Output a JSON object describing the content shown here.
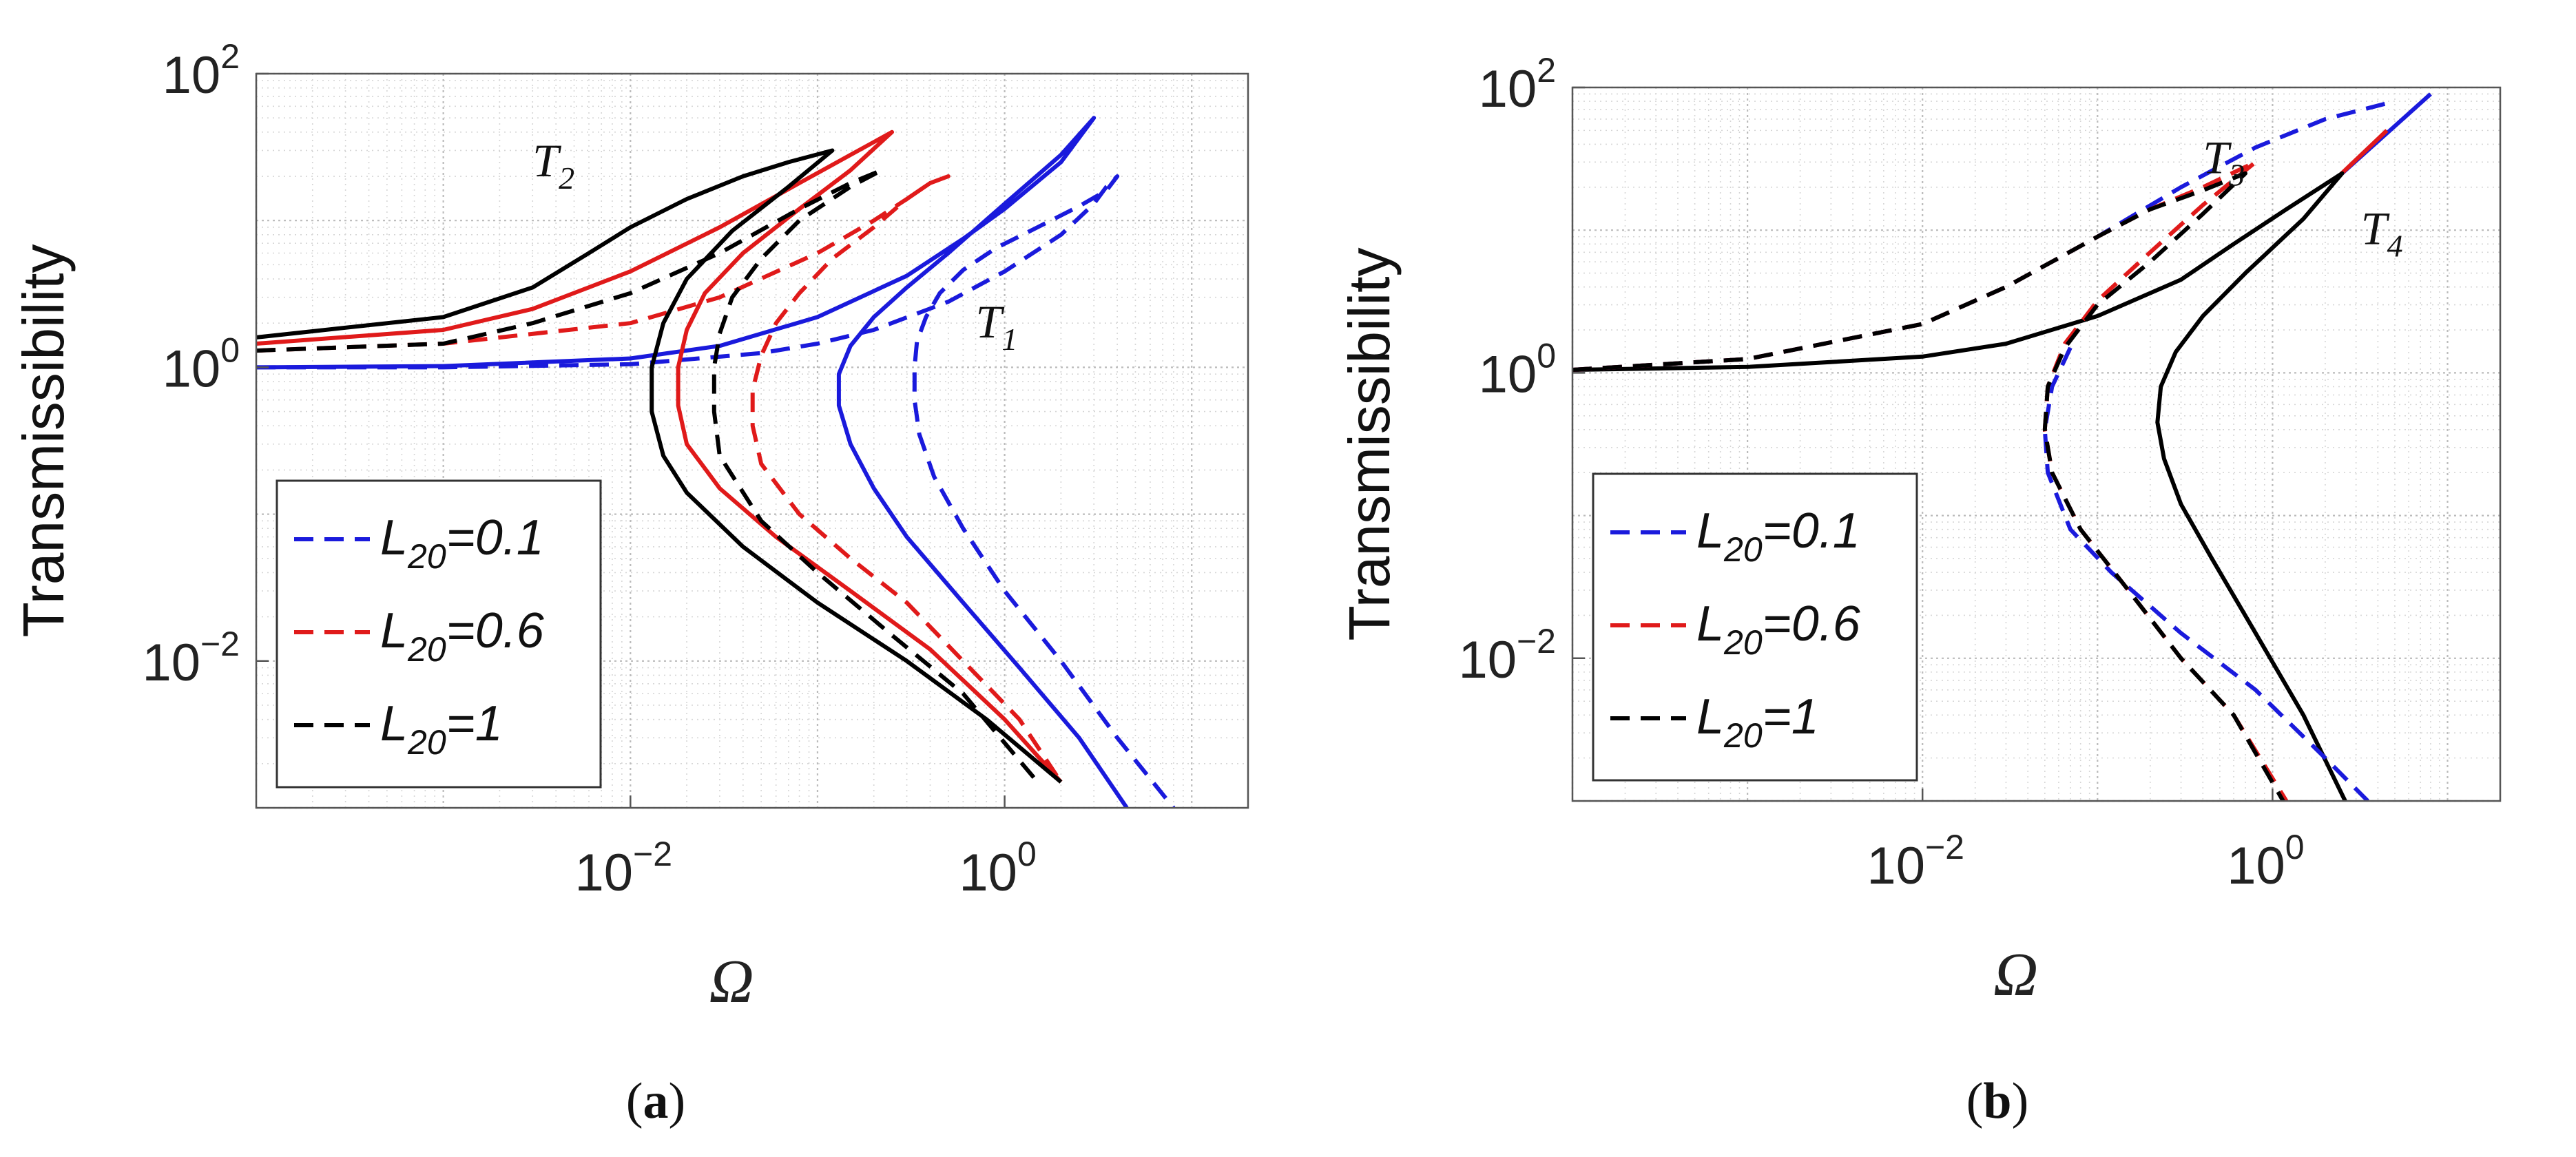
{
  "chart_data": [
    {
      "type": "line",
      "panel": "a",
      "caption_letter": "a",
      "xscale": "log",
      "yscale": "log",
      "xlim": [
        0.0001,
        20
      ],
      "ylim": [
        0.001,
        100
      ],
      "xlabel": "Ω",
      "ylabel": "Transmissibility",
      "xticks": [
        {
          "value": 0.01,
          "base": "10",
          "exp": "−2"
        },
        {
          "value": 1,
          "base": "10",
          "exp": "0"
        }
      ],
      "yticks": [
        {
          "value": 0.01,
          "base": "10",
          "exp": "−2"
        },
        {
          "value": 1,
          "base": "10",
          "exp": "0"
        },
        {
          "value": 100,
          "base": "10",
          "exp": "2"
        }
      ],
      "annotations": [
        {
          "base": "T",
          "sub": "2",
          "x": 0.003,
          "y": 20
        },
        {
          "base": "T",
          "sub": "1",
          "x": 0.7,
          "y": 1.6
        }
      ],
      "legend": {
        "placement": "lower-left",
        "entries": [
          {
            "base": "L",
            "sub": "20",
            "suffix": "=0.1",
            "color": "#1a1adc"
          },
          {
            "base": "L",
            "sub": "20",
            "suffix": "=0.6",
            "color": "#e01a1a"
          },
          {
            "base": "L",
            "sub": "20",
            "suffix": "=1",
            "color": "#000000"
          }
        ]
      },
      "series": [
        {
          "name": "T1, L20=0.1",
          "color": "#1a1adc",
          "dash": true,
          "x": [
            0.0001,
            0.001,
            0.01,
            0.05,
            0.1,
            0.2,
            0.5,
            1,
            2,
            3,
            3.5,
            4,
            3.5,
            2.5,
            1.5,
            0.9,
            0.6,
            0.45,
            0.38,
            0.34,
            0.33,
            0.33,
            0.35,
            0.42,
            0.6,
            1,
            2,
            4,
            8
          ],
          "y": [
            1.0,
            1.0,
            1.05,
            1.25,
            1.45,
            1.8,
            2.8,
            4.5,
            8,
            13,
            17,
            20,
            16,
            12.5,
            9,
            6.5,
            4.6,
            3.2,
            2.2,
            1.5,
            1.0,
            0.6,
            0.35,
            0.18,
            0.08,
            0.03,
            0.01,
            0.003,
            0.001
          ]
        },
        {
          "name": "T2, L20=0.1",
          "color": "#1a1adc",
          "dash": false,
          "x": [
            0.0001,
            0.001,
            0.01,
            0.03,
            0.1,
            0.3,
            0.6,
            1,
            2,
            3,
            2,
            1,
            0.5,
            0.3,
            0.2,
            0.15,
            0.13,
            0.13,
            0.15,
            0.2,
            0.3,
            0.6,
            1.2,
            2.5,
            4.5
          ],
          "y": [
            1.0,
            1.02,
            1.15,
            1.4,
            2.2,
            4.2,
            7.5,
            12,
            25,
            50,
            28,
            13,
            6,
            3.5,
            2.2,
            1.4,
            0.9,
            0.55,
            0.3,
            0.15,
            0.07,
            0.025,
            0.009,
            0.003,
            0.001
          ]
        },
        {
          "name": "T1, L20=0.6",
          "color": "#e01a1a",
          "dash": true,
          "x": [
            0.0001,
            0.001,
            0.01,
            0.03,
            0.1,
            0.2,
            0.3,
            0.4,
            0.5,
            0.4,
            0.3,
            0.2,
            0.12,
            0.08,
            0.06,
            0.05,
            0.045,
            0.045,
            0.05,
            0.08,
            0.15,
            0.3,
            0.6,
            1.2,
            2
          ],
          "y": [
            1.3,
            1.45,
            2.0,
            3.0,
            6.0,
            10,
            14,
            18,
            20,
            18,
            14,
            9,
            5.5,
            3.2,
            2.0,
            1.2,
            0.7,
            0.4,
            0.22,
            0.1,
            0.05,
            0.025,
            0.01,
            0.004,
            0.0015
          ]
        },
        {
          "name": "T2, L20=0.6",
          "color": "#e01a1a",
          "dash": false,
          "x": [
            0.0001,
            0.001,
            0.003,
            0.01,
            0.03,
            0.08,
            0.15,
            0.25,
            0.15,
            0.08,
            0.04,
            0.025,
            0.02,
            0.018,
            0.018,
            0.02,
            0.03,
            0.06,
            0.15,
            0.4,
            1,
            2
          ],
          "y": [
            1.45,
            1.8,
            2.5,
            4.5,
            9,
            18,
            28,
            40,
            22,
            12,
            6,
            3.2,
            1.8,
            1.0,
            0.55,
            0.3,
            0.15,
            0.07,
            0.03,
            0.012,
            0.004,
            0.0015
          ]
        },
        {
          "name": "T1, L20=1",
          "color": "#000000",
          "dash": true,
          "x": [
            0.0001,
            0.001,
            0.003,
            0.01,
            0.03,
            0.08,
            0.15,
            0.22,
            0.15,
            0.08,
            0.05,
            0.035,
            0.03,
            0.028,
            0.028,
            0.03,
            0.05,
            0.1,
            0.25,
            0.6,
            1.5
          ],
          "y": [
            1.3,
            1.45,
            2.0,
            3.2,
            6.0,
            12,
            18,
            22,
            17,
            10,
            5.5,
            3.0,
            1.7,
            1.0,
            0.5,
            0.25,
            0.09,
            0.04,
            0.015,
            0.006,
            0.0015
          ]
        },
        {
          "name": "T2, L20=1",
          "color": "#000000",
          "dash": false,
          "x": [
            0.0001,
            0.001,
            0.003,
            0.006,
            0.01,
            0.02,
            0.04,
            0.07,
            0.12,
            0.07,
            0.035,
            0.02,
            0.015,
            0.013,
            0.013,
            0.015,
            0.02,
            0.04,
            0.1,
            0.3,
            0.8,
            2
          ],
          "y": [
            1.6,
            2.2,
            3.5,
            6.0,
            9,
            14,
            20,
            25,
            30,
            17,
            8.5,
            4.0,
            2.0,
            1.0,
            0.5,
            0.25,
            0.14,
            0.06,
            0.025,
            0.01,
            0.004,
            0.0015
          ]
        }
      ]
    },
    {
      "type": "line",
      "panel": "b",
      "caption_letter": "b",
      "xscale": "log",
      "yscale": "log",
      "xlim": [
        0.0001,
        20
      ],
      "ylim": [
        0.001,
        100
      ],
      "xlabel": "Ω",
      "ylabel": "Transmissibility",
      "xticks": [
        {
          "value": 0.01,
          "base": "10",
          "exp": "−2"
        },
        {
          "value": 1,
          "base": "10",
          "exp": "0"
        }
      ],
      "yticks": [
        {
          "value": 0.01,
          "base": "10",
          "exp": "−2"
        },
        {
          "value": 1,
          "base": "10",
          "exp": "0"
        },
        {
          "value": 100,
          "base": "10",
          "exp": "2"
        }
      ],
      "annotations": [
        {
          "base": "T",
          "sub": "3",
          "x": 0.4,
          "y": 25
        },
        {
          "base": "T",
          "sub": "4",
          "x": 3.2,
          "y": 8
        }
      ],
      "legend": {
        "placement": "lower-left",
        "entries": [
          {
            "base": "L",
            "sub": "20",
            "suffix": "=0.1",
            "color": "#1a1adc"
          },
          {
            "base": "L",
            "sub": "20",
            "suffix": "=0.6",
            "color": "#e01a1a"
          },
          {
            "base": "L",
            "sub": "20",
            "suffix": "=1",
            "color": "#000000"
          }
        ]
      },
      "series": [
        {
          "name": "T4, L20=0.1",
          "color": "#1a1adc",
          "dash": false,
          "x": [
            2.5,
            8
          ],
          "y": [
            25,
            90
          ]
        },
        {
          "name": "T4, L20=0.6",
          "color": "#e01a1a",
          "dash": false,
          "x": [
            2.4,
            4.5
          ],
          "y": [
            24,
            50
          ]
        },
        {
          "name": "T4, L20=1",
          "color": "#000000",
          "dash": false,
          "x": [
            0.0001,
            0.001,
            0.01,
            0.03,
            0.1,
            0.3,
            0.6,
            1.2,
            2.5,
            1.5,
            0.7,
            0.4,
            0.28,
            0.23,
            0.22,
            0.24,
            0.3,
            0.45,
            0.8,
            1.5,
            2.6
          ],
          "y": [
            1.05,
            1.1,
            1.3,
            1.6,
            2.5,
            4.5,
            8,
            14,
            25,
            12,
            5,
            2.5,
            1.4,
            0.8,
            0.45,
            0.25,
            0.12,
            0.05,
            0.015,
            0.004,
            0.001
          ]
        },
        {
          "name": "T3, L20=0.1",
          "color": "#1a1adc",
          "dash": true,
          "x": [
            0.0001,
            0.001,
            0.01,
            0.03,
            0.1,
            0.3,
            0.8,
            2,
            5
          ],
          "y": [
            1.05,
            1.25,
            2.2,
            4.0,
            9,
            20,
            38,
            60,
            80
          ],
          "x2": [
            0.07,
            0.055,
            0.05,
            0.052,
            0.07,
            0.12,
            0.3,
            0.8,
            2,
            3.5
          ],
          "y2": [
            1.5,
            0.8,
            0.4,
            0.2,
            0.08,
            0.04,
            0.015,
            0.006,
            0.002,
            0.001
          ]
        },
        {
          "name": "T3, L20=0.6",
          "color": "#e01a1a",
          "dash": true,
          "x": [
            0.0001,
            0.001,
            0.01,
            0.03,
            0.1,
            0.2,
            0.4,
            0.8,
            0.4,
            0.2,
            0.1,
            0.065,
            0.052,
            0.05,
            0.055,
            0.08,
            0.15,
            0.3,
            0.6,
            1.2
          ],
          "y": [
            1.05,
            1.25,
            2.2,
            4.0,
            9,
            14,
            20,
            30,
            15,
            7,
            3.2,
            1.6,
            0.8,
            0.4,
            0.2,
            0.08,
            0.03,
            0.01,
            0.004,
            0.001
          ]
        },
        {
          "name": "T3, L20=1",
          "color": "#000000",
          "dash": true,
          "x": [
            0.0001,
            0.001,
            0.01,
            0.03,
            0.1,
            0.2,
            0.4,
            0.7,
            0.4,
            0.2,
            0.1,
            0.065,
            0.052,
            0.05,
            0.055,
            0.08,
            0.15,
            0.3,
            0.6,
            1.15
          ],
          "y": [
            1.05,
            1.25,
            2.2,
            4.0,
            9,
            14,
            19,
            25,
            13,
            6,
            3.0,
            1.5,
            0.8,
            0.4,
            0.2,
            0.08,
            0.03,
            0.01,
            0.004,
            0.001
          ]
        }
      ]
    }
  ]
}
